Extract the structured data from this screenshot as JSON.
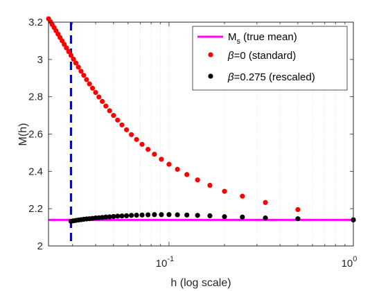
{
  "chart_data": {
    "type": "scatter",
    "title": "",
    "xlabel": "h (log scale)",
    "ylabel": "M(h)",
    "xscale": "log",
    "xlim": [
      0.0222,
      1.0
    ],
    "ylim": [
      2.0,
      3.2
    ],
    "xticks": [
      {
        "value": 0.1,
        "base": "10",
        "exp": "-1"
      },
      {
        "value": 1.0,
        "base": "10",
        "exp": "0"
      }
    ],
    "yticks": [
      {
        "value": 2.0,
        "label": "2"
      },
      {
        "value": 2.2,
        "label": "2.2"
      },
      {
        "value": 2.4,
        "label": "2.4"
      },
      {
        "value": 2.6,
        "label": "2.6"
      },
      {
        "value": 2.8,
        "label": "2.8"
      },
      {
        "value": 3.0,
        "label": "3"
      },
      {
        "value": 3.2,
        "label": "3.2"
      }
    ],
    "grid": "x-minor-dotted",
    "legend_position": "top-right",
    "true_mean": {
      "value": 2.14,
      "legend_main": "M",
      "legend_sub": "s",
      "legend_rest": " (true mean)",
      "color": "#ff00ff"
    },
    "vline": {
      "x": 0.0294,
      "color": "#0000ff",
      "style": "dashed"
    },
    "series": [
      {
        "name": "β=0 (standard)",
        "legend_beta": "β",
        "legend_rest": "=0 (standard)",
        "color": "#ff0000",
        "n_values": [
          1,
          2,
          3,
          4,
          5,
          6,
          7,
          8,
          9,
          10,
          11,
          12,
          13,
          14,
          15,
          16,
          17,
          18,
          19,
          20,
          21,
          22,
          23,
          24,
          25,
          26,
          27,
          28,
          29,
          30,
          31,
          32,
          33,
          34,
          35,
          36,
          37,
          38,
          39,
          40,
          41,
          42,
          43,
          44,
          45
        ],
        "y": [
          2.14,
          2.195,
          2.233,
          2.267,
          2.293,
          2.325,
          2.354,
          2.383,
          2.411,
          2.438,
          2.465,
          2.492,
          2.518,
          2.545,
          2.571,
          2.597,
          2.623,
          2.649,
          2.675,
          2.7,
          2.725,
          2.75,
          2.775,
          2.799,
          2.823,
          2.846,
          2.869,
          2.892,
          2.915,
          2.937,
          2.959,
          2.981,
          3.002,
          3.022,
          3.042,
          3.062,
          3.081,
          3.1,
          3.118,
          3.136,
          3.154,
          3.171,
          3.187,
          3.203,
          3.218
        ]
      },
      {
        "name": "β=0.275 (rescaled)",
        "legend_beta": "β",
        "legend_rest": "=0.275 (rescaled)",
        "color": "#000000",
        "n_values": [
          1,
          2,
          3,
          4,
          5,
          6,
          7,
          8,
          9,
          10,
          11,
          12,
          13,
          14,
          15,
          16,
          17,
          18,
          19,
          20,
          21,
          22,
          23,
          24,
          25,
          26,
          27,
          28,
          29,
          30,
          31,
          32,
          33,
          34
        ],
        "y": [
          2.14,
          2.146,
          2.15,
          2.155,
          2.157,
          2.162,
          2.164,
          2.166,
          2.167,
          2.168,
          2.168,
          2.168,
          2.167,
          2.166,
          2.165,
          2.164,
          2.162,
          2.161,
          2.16,
          2.158,
          2.156,
          2.155,
          2.153,
          2.151,
          2.15,
          2.148,
          2.146,
          2.145,
          2.143,
          2.141,
          2.139,
          2.137,
          2.135,
          2.132
        ]
      }
    ]
  }
}
